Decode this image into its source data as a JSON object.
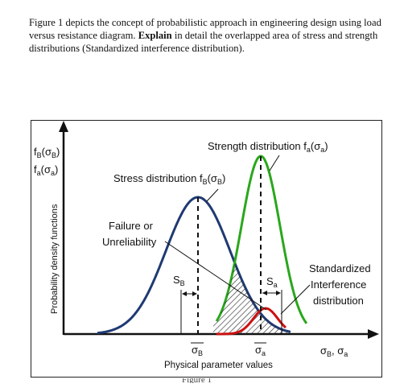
{
  "question": {
    "part1": "Figure 1 depicts the concept of probabilistic approach in engineering design using load versus resistance diagram. ",
    "bold": "Explain",
    "part2": " in detail the overlapped area of stress and strength distributions (Standardized interference distribution)."
  },
  "diagram": {
    "y_axis_symbol_1": "f_B(σ_B)",
    "y_axis_symbol_2": "f_a(σ_a)",
    "y_axis_title": "Probability density functions",
    "stress_label": "Stress distribution",
    "stress_func": "f_B(σ_B)",
    "strength_label": "Strength distribution",
    "strength_func": "f_a(σ_a)",
    "failure_label_1": "Failure or",
    "failure_label_2": "Unreliability",
    "s_b": "S_B",
    "s_a": "S_a",
    "interference_1": "Standardized",
    "interference_2": "Interference",
    "interference_3": "distribution",
    "mean_b": "σ_B",
    "mean_a": "σ_a",
    "x_axis_title": "Physical parameter values",
    "x_axis_symbol": "σ_B, σ_a"
  },
  "colors": {
    "stress_curve": "#1f3a73",
    "strength_curve": "#2aa71c",
    "interference_curve": "#cc1111",
    "axis": "#111111"
  }
}
